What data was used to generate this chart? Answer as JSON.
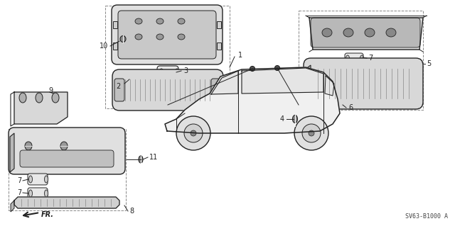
{
  "bg_color": "#ffffff",
  "line_color": "#222222",
  "part_number_text": "SV63-B1000 A",
  "figsize": [
    6.4,
    3.19
  ],
  "dpi": 100
}
